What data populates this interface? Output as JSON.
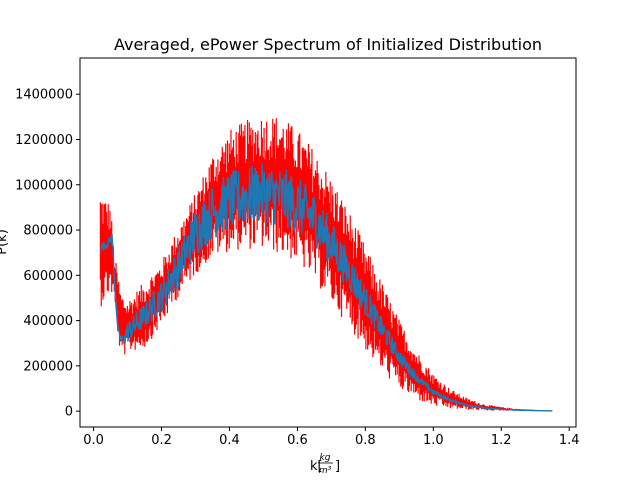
{
  "chart_data": {
    "type": "line",
    "title": "Averaged, ePower Spectrum of Initialized Distribution",
    "xlabel": "k[",
    "xlabel_fraction": {
      "numerator": "kg",
      "denominator": "m³"
    },
    "xlabel_close": "]",
    "ylabel": "P(k)",
    "xlim": [
      -0.04,
      1.42
    ],
    "ylim": [
      -70000,
      1560000
    ],
    "x_ticks": [
      0.0,
      0.2,
      0.4,
      0.6,
      0.8,
      1.0,
      1.2,
      1.4
    ],
    "x_tick_labels": [
      "0.0",
      "0.2",
      "0.4",
      "0.6",
      "0.8",
      "1.0",
      "1.2",
      "1.4"
    ],
    "y_ticks": [
      0,
      200000,
      400000,
      600000,
      800000,
      1000000,
      1200000,
      1400000
    ],
    "y_tick_labels": [
      "0",
      "200000",
      "400000",
      "600000",
      "800000",
      "1000000",
      "1200000",
      "1400000"
    ],
    "grid": false,
    "series": [
      {
        "color": "#ff0000",
        "style": "error-bars",
        "envelope_x": [
          0.02,
          0.05,
          0.06,
          0.08,
          0.1,
          0.15,
          0.2,
          0.25,
          0.3,
          0.35,
          0.4,
          0.45,
          0.5,
          0.55,
          0.6,
          0.65,
          0.7,
          0.75,
          0.8,
          0.85,
          0.9,
          0.95,
          1.0,
          1.05,
          1.1,
          1.15,
          1.2,
          1.25,
          1.3,
          1.35
        ],
        "envelope_upper": [
          960000,
          900000,
          700000,
          520000,
          480000,
          560000,
          650000,
          800000,
          950000,
          1120000,
          1220000,
          1260000,
          1290000,
          1280000,
          1220000,
          1130000,
          1010000,
          870000,
          710000,
          550000,
          390000,
          260000,
          160000,
          95000,
          55000,
          30000,
          18000,
          10000,
          6000,
          3000
        ],
        "envelope_lower": [
          480000,
          540000,
          500000,
          240000,
          270000,
          290000,
          390000,
          520000,
          620000,
          700000,
          730000,
          740000,
          740000,
          720000,
          680000,
          600000,
          500000,
          400000,
          290000,
          190000,
          110000,
          60000,
          28000,
          14000,
          8000,
          4000,
          2500,
          1500,
          800,
          300
        ]
      },
      {
        "color": "#1f77b4",
        "style": "line",
        "x": [
          0.02,
          0.04,
          0.055,
          0.06,
          0.07,
          0.08,
          0.1,
          0.15,
          0.2,
          0.25,
          0.3,
          0.35,
          0.4,
          0.45,
          0.5,
          0.55,
          0.6,
          0.65,
          0.7,
          0.75,
          0.8,
          0.85,
          0.9,
          0.95,
          1.0,
          1.05,
          1.1,
          1.15,
          1.2,
          1.25,
          1.3,
          1.35
        ],
        "y": [
          720000,
          740000,
          770000,
          620000,
          380000,
          310000,
          350000,
          420000,
          510000,
          640000,
          790000,
          880000,
          930000,
          950000,
          960000,
          950000,
          910000,
          850000,
          740000,
          620000,
          490000,
          360000,
          240000,
          150000,
          85000,
          48000,
          26000,
          14000,
          8000,
          4500,
          2500,
          1200
        ]
      }
    ]
  }
}
